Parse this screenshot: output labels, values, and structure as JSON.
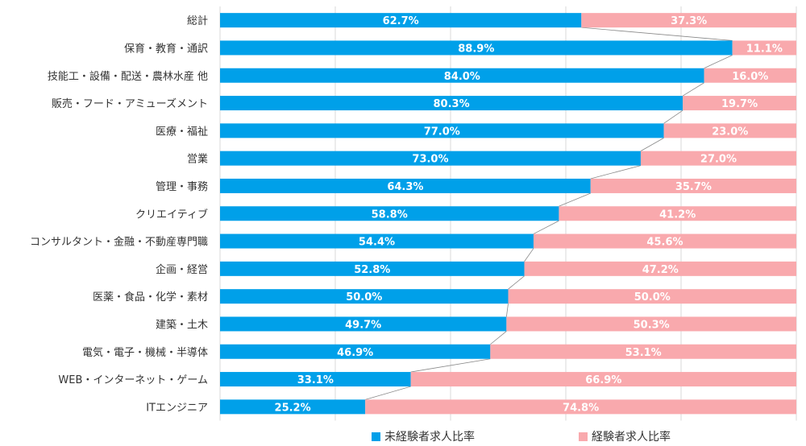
{
  "chart_data": {
    "type": "bar",
    "orientation": "horizontal",
    "stacked": "percent",
    "categories": [
      "総計",
      "保育・教育・通訳",
      "技能工・設備・配送・農林水産 他",
      "販売・フード・アミューズメント",
      "医療・福祉",
      "営業",
      "管理・事務",
      "クリエイティブ",
      "コンサルタント・金融・不動産専門職",
      "企画・経営",
      "医薬・食品・化学・素材",
      "建築・土木",
      "電気・電子・機械・半導体",
      "WEB・インターネット・ゲーム",
      "ITエンジニア"
    ],
    "series": [
      {
        "name": "未経験者求人比率",
        "color": "#00a0e9",
        "values": [
          62.7,
          88.9,
          84.0,
          80.3,
          77.0,
          73.0,
          64.3,
          58.8,
          54.4,
          52.8,
          50.0,
          49.7,
          46.9,
          33.1,
          25.2
        ],
        "labels": [
          "62.7%",
          "88.9%",
          "84.0%",
          "80.3%",
          "77.0%",
          "73.0%",
          "64.3%",
          "58.8%",
          "54.4%",
          "52.8%",
          "50.0%",
          "49.7%",
          "46.9%",
          "33.1%",
          "25.2%"
        ]
      },
      {
        "name": "経験者求人比率",
        "color": "#f9a9ad",
        "values": [
          37.3,
          11.1,
          16.0,
          19.7,
          23.0,
          27.0,
          35.7,
          41.2,
          45.6,
          47.2,
          50.0,
          50.3,
          53.1,
          66.9,
          74.8
        ],
        "labels": [
          "37.3%",
          "11.1%",
          "16.0%",
          "19.7%",
          "23.0%",
          "27.0%",
          "35.7%",
          "41.2%",
          "45.6%",
          "47.2%",
          "50.0%",
          "50.3%",
          "53.1%",
          "66.9%",
          "74.8%"
        ]
      }
    ],
    "xlim": [
      0,
      100
    ],
    "grid": true,
    "legend_position": "bottom",
    "series_lines": true
  }
}
